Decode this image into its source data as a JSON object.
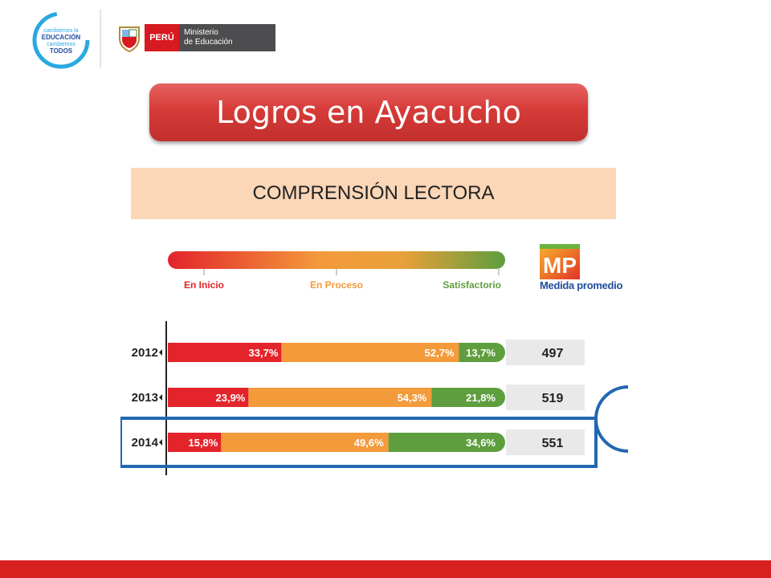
{
  "header": {
    "campaign_logo_text": [
      "cambiemos la",
      "EDUCACIÓN",
      "cambiemos",
      "TODOS"
    ],
    "peru_label": "PERÚ",
    "ministry_line1": "Ministerio",
    "ministry_line2": "de Educación"
  },
  "title": "Logros en Ayacucho",
  "subtitle": "COMPRENSIÓN LECTORA",
  "legend": {
    "scale_labels": [
      "En Inicio",
      "En Proceso",
      "Satisfactorio"
    ],
    "mp_logo": "MP",
    "mp_caption": "Medida promedio"
  },
  "colors": {
    "inicio": "#e3242b",
    "proceso": "#f39a3b",
    "satisfactorio": "#5e9e3e",
    "highlight": "#2268b1",
    "accent_red": "#d7201f"
  },
  "chart_data": {
    "type": "bar",
    "orientation": "horizontal-stacked",
    "categories": [
      "2012",
      "2013",
      "2014"
    ],
    "series": [
      {
        "name": "En Inicio",
        "values": [
          33.7,
          23.9,
          15.8
        ],
        "labels": [
          "33,7%",
          "23,9%",
          "15,8%"
        ]
      },
      {
        "name": "En Proceso",
        "values": [
          52.7,
          54.3,
          49.6
        ],
        "labels": [
          "52,7%",
          "54,3%",
          "49,6%"
        ]
      },
      {
        "name": "Satisfactorio",
        "values": [
          13.7,
          21.8,
          34.6
        ],
        "labels": [
          "13,7%",
          "21,8%",
          "34,6%"
        ]
      }
    ],
    "medida_promedio": [
      "497",
      "519",
      "551"
    ],
    "highlighted_category": "2014"
  }
}
